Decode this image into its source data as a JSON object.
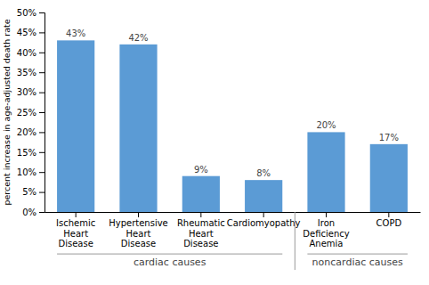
{
  "chart_data": {
    "type": "bar",
    "categories": [
      "Ischemic Heart Disease",
      "Hypertensive Heart\nDisease",
      "Rheumatic Heart Disease",
      "Cardiomyopathy",
      "Iron Deficiency Anemia",
      "COPD"
    ],
    "values": [
      43,
      42,
      9,
      8,
      20,
      17
    ],
    "value_labels": [
      "43%",
      "42%",
      "9%",
      "8%",
      "20%",
      "17%"
    ],
    "data_labels": true,
    "color": "#5b9bd5",
    "ylabel": "percent increase in age-adjusted death rate",
    "ylim": [
      0,
      50
    ],
    "yticks": [
      {
        "value": 0,
        "label": "0%"
      },
      {
        "value": 5,
        "label": "5%"
      },
      {
        "value": 10,
        "label": "10%"
      },
      {
        "value": 15,
        "label": "15%"
      },
      {
        "value": 20,
        "label": "20%"
      },
      {
        "value": 25,
        "label": "25%"
      },
      {
        "value": 30,
        "label": "30%"
      },
      {
        "value": 35,
        "label": "35%"
      },
      {
        "value": 40,
        "label": "40%"
      },
      {
        "value": 45,
        "label": "45%"
      },
      {
        "value": 50,
        "label": "50%"
      }
    ],
    "grid": false,
    "annotations": [
      {
        "text": "cardiac causes",
        "categories": [
          "Ischemic Heart Disease",
          "Hypertensive Heart\nDisease",
          "Rheumatic Heart Disease",
          "Cardiomyopathy"
        ]
      },
      {
        "text": "noncardiac causes",
        "categories": [
          "Iron Deficiency Anemia",
          "COPD"
        ]
      }
    ]
  }
}
